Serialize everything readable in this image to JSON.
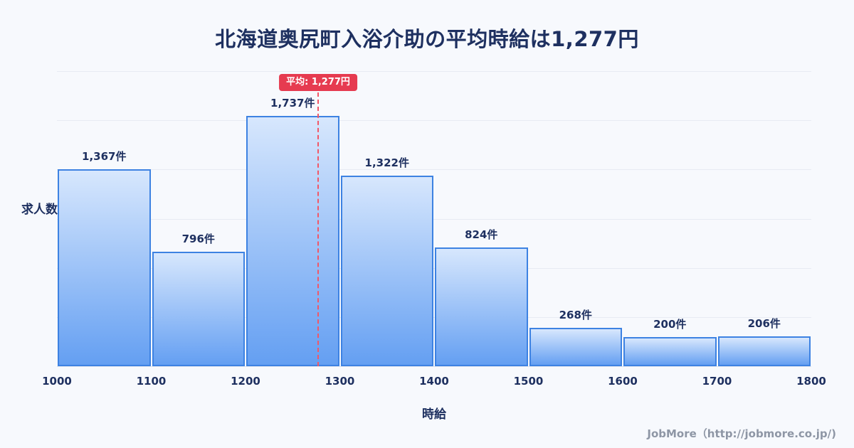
{
  "title": "北海道奥尻町入浴介助の平均時給は1,277円",
  "footer": {
    "credit": "JobMore（http://jobmore.co.jp/)"
  },
  "chart_data": {
    "type": "bar",
    "subtype": "histogram",
    "title": "北海道奥尻町入浴介助の平均時給は1,277円",
    "xlabel": "時給",
    "ylabel": "求人数",
    "bin_edges": [
      "1000",
      "1100",
      "1200",
      "1300",
      "1400",
      "1500",
      "1600",
      "1700",
      "1800"
    ],
    "categories": [
      "1000-1100",
      "1100-1200",
      "1200-1300",
      "1300-1400",
      "1400-1500",
      "1500-1600",
      "1600-1700",
      "1700-1800"
    ],
    "values": [
      1367,
      796,
      1737,
      1322,
      824,
      268,
      200,
      206
    ],
    "value_labels": [
      "1,367件",
      "796件",
      "1,737件",
      "1,322件",
      "824件",
      "268件",
      "200件",
      "206件"
    ],
    "average": 1277,
    "average_label": "平均: 1,277円",
    "xlim": [
      1000,
      1800
    ],
    "ylim": [
      0,
      1900
    ],
    "grid": "horizontal",
    "legend": "none",
    "colors": {
      "background": "#f7f9fd",
      "title_navy": "#1e3060",
      "bar_gradient_top": "#d7e7fd",
      "bar_gradient_bottom": "#649ff2",
      "bar_border": "#3d82e2",
      "average_line_red": "#f25767",
      "average_badge_red": "#e63b50",
      "footer_gray": "#8e96a5"
    }
  }
}
